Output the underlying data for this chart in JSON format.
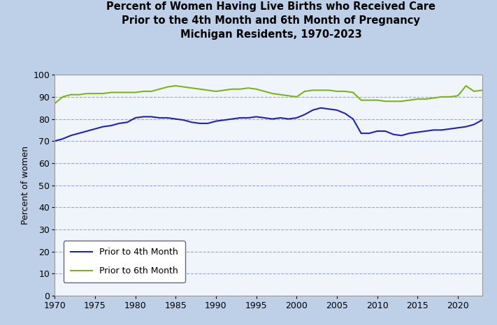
{
  "title_line1": "Percent of Women Having Live Births who Received Care",
  "title_line2": "Prior to the 4th Month and 6th Month of Pregnancy",
  "title_line3": "Michigan Residents, 1970-2023",
  "ylabel": "Percent of women",
  "years": [
    1970,
    1971,
    1972,
    1973,
    1974,
    1975,
    1976,
    1977,
    1978,
    1979,
    1980,
    1981,
    1982,
    1983,
    1984,
    1985,
    1986,
    1987,
    1988,
    1989,
    1990,
    1991,
    1992,
    1993,
    1994,
    1995,
    1996,
    1997,
    1998,
    1999,
    2000,
    2001,
    2002,
    2003,
    2004,
    2005,
    2006,
    2007,
    2008,
    2009,
    2010,
    2011,
    2012,
    2013,
    2014,
    2015,
    2016,
    2017,
    2018,
    2019,
    2020,
    2021,
    2022,
    2023
  ],
  "fourth_month": [
    70.0,
    71.0,
    72.5,
    73.5,
    74.5,
    75.5,
    76.5,
    77.0,
    78.0,
    78.5,
    80.5,
    81.0,
    81.0,
    80.5,
    80.5,
    80.0,
    79.5,
    78.5,
    78.0,
    78.0,
    79.0,
    79.5,
    80.0,
    80.5,
    80.5,
    81.0,
    80.5,
    80.0,
    80.5,
    80.0,
    80.5,
    82.0,
    84.0,
    85.0,
    84.5,
    84.0,
    82.5,
    80.0,
    73.5,
    73.5,
    74.5,
    74.5,
    73.0,
    72.5,
    73.5,
    74.0,
    74.5,
    75.0,
    75.0,
    75.5,
    76.0,
    76.5,
    77.5,
    79.5
  ],
  "sixth_month": [
    87.0,
    90.0,
    91.0,
    91.0,
    91.5,
    91.5,
    91.5,
    92.0,
    92.0,
    92.0,
    92.0,
    92.5,
    92.5,
    93.5,
    94.5,
    95.0,
    94.5,
    94.0,
    93.5,
    93.0,
    92.5,
    93.0,
    93.5,
    93.5,
    94.0,
    93.5,
    92.5,
    91.5,
    91.0,
    90.5,
    90.0,
    92.5,
    93.0,
    93.0,
    93.0,
    92.5,
    92.5,
    92.0,
    88.5,
    88.5,
    88.5,
    88.0,
    88.0,
    88.0,
    88.5,
    89.0,
    89.0,
    89.5,
    90.0,
    90.0,
    90.5,
    95.0,
    92.5,
    93.0
  ],
  "blue_color": "#2020BB",
  "green_color": "#7CB518",
  "bg_outer": "#BDD0E8",
  "bg_inner": "#F0F5FB",
  "grid_color": "#8899CC",
  "ylim": [
    0,
    100
  ],
  "yticks": [
    0,
    10,
    20,
    30,
    40,
    50,
    60,
    70,
    80,
    90,
    100
  ],
  "xticks": [
    1970,
    1975,
    1980,
    1985,
    1990,
    1995,
    2000,
    2005,
    2010,
    2015,
    2020
  ],
  "legend_label_4th": "Prior to 4th Month",
  "legend_label_6th": "Prior to 6th Month",
  "title_fontsize": 10.5,
  "axis_label_fontsize": 9,
  "tick_fontsize": 9
}
